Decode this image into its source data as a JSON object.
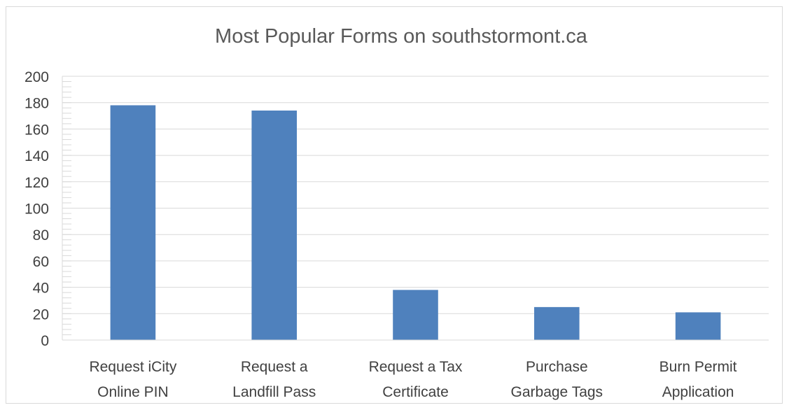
{
  "chart_data": {
    "type": "bar",
    "title": "Most Popular Forms on southstormont.ca",
    "xlabel": "",
    "ylabel": "",
    "categories": [
      [
        "Request iCity",
        "Online PIN"
      ],
      [
        "Request a",
        "Landfill Pass"
      ],
      [
        "Request a Tax",
        "Certificate"
      ],
      [
        "Purchase",
        "Garbage Tags"
      ],
      [
        "Burn Permit",
        "Application"
      ]
    ],
    "values": [
      178,
      174,
      38,
      25,
      21
    ],
    "ylim": [
      0,
      200
    ],
    "yticks": [
      0,
      20,
      40,
      60,
      80,
      100,
      120,
      140,
      160,
      180,
      200
    ],
    "grid": true,
    "legend": "none",
    "colors": {
      "bar": "#4f81bd",
      "grid": "#d9d9d9",
      "axis": "#d9d9d9"
    }
  }
}
